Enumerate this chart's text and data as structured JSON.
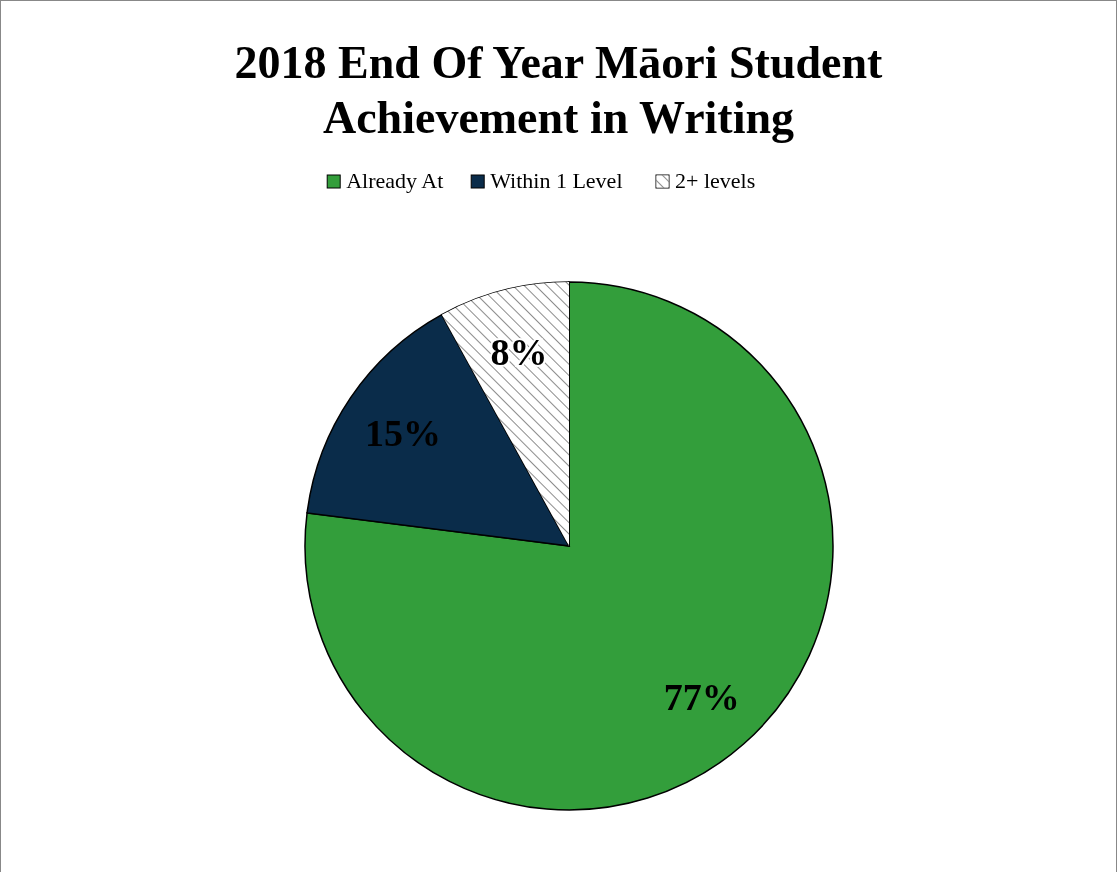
{
  "chart_data": {
    "type": "pie",
    "title": "2018 End Of Year Māori Student Achievement in Writing",
    "categories": [
      "Already At",
      "Within 1 Level",
      "2+ levels"
    ],
    "values": [
      77,
      15,
      8
    ],
    "colors": [
      "#339e3b",
      "#0a2c4a",
      "#ffffff"
    ],
    "value_labels": [
      "77%",
      "15%",
      "8%"
    ],
    "legend": "top"
  }
}
